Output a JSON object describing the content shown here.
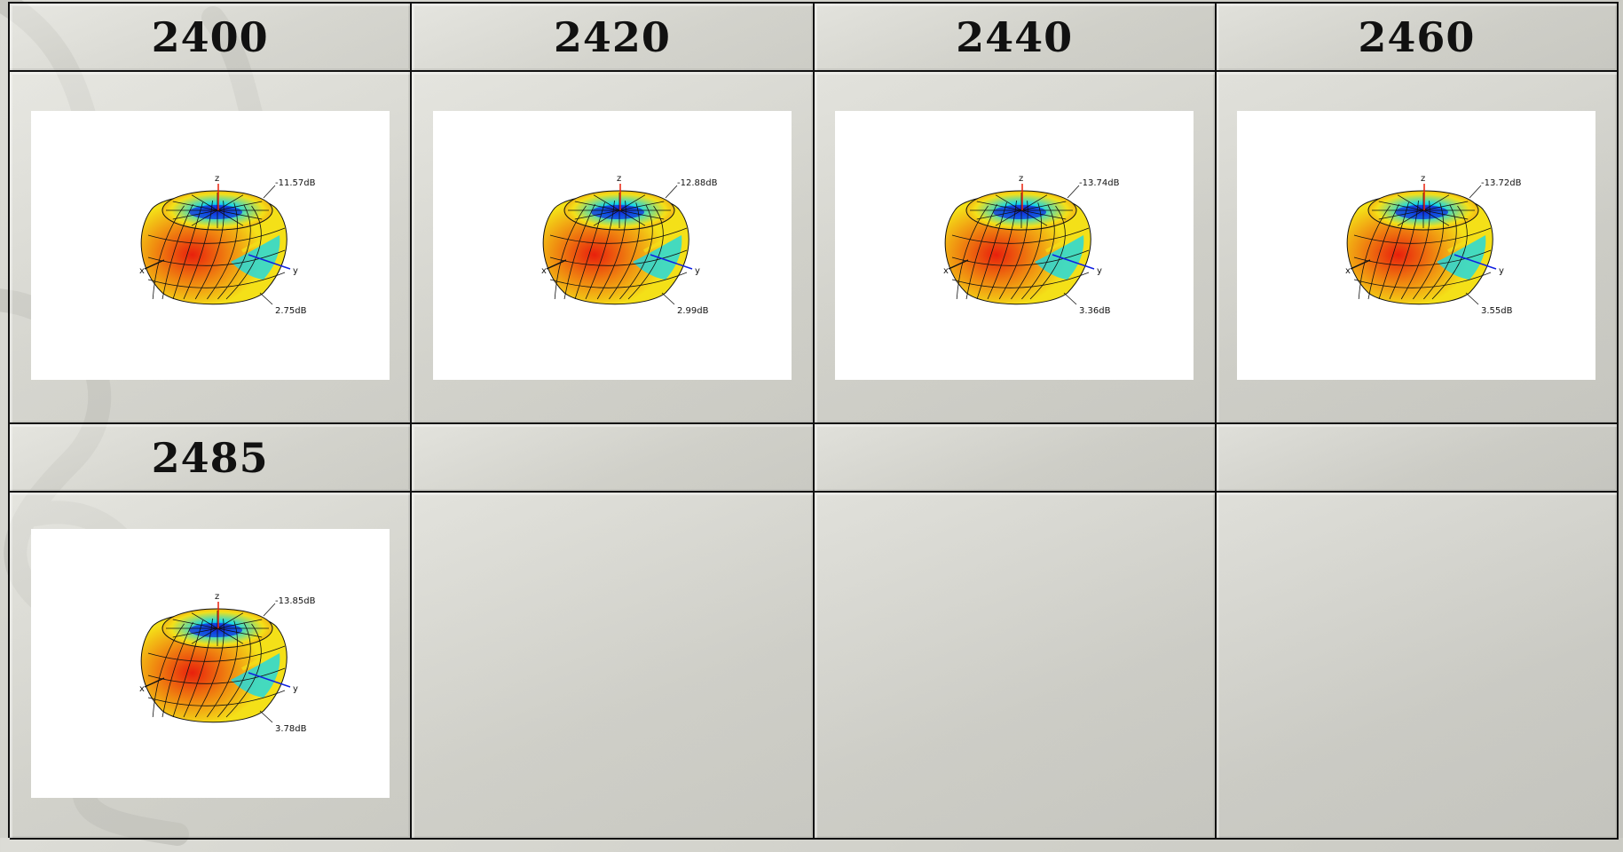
{
  "headers": [
    "2400",
    "2420",
    "2440",
    "2460",
    "2485",
    "",
    "",
    ""
  ],
  "patterns": [
    {
      "max_label": "-11.57dB",
      "min_label": "2.75dB"
    },
    {
      "max_label": "-12.88dB",
      "min_label": "2.99dB"
    },
    {
      "max_label": "-13.74dB",
      "min_label": "3.36dB"
    },
    {
      "max_label": "-13.72dB",
      "min_label": "3.55dB"
    },
    {
      "max_label": "-13.85dB",
      "min_label": "3.78dB"
    }
  ],
  "axes": {
    "x": "x",
    "y": "y",
    "z": "z"
  },
  "colors": {
    "red": "#e8200c",
    "orange": "#f08a10",
    "yellow": "#f4e018",
    "cyan": "#18d8e8",
    "blue": "#1020e0"
  }
}
